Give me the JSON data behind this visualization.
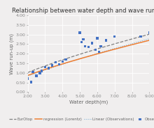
{
  "title": "Relationship between water depth and wave run-up",
  "xlabel": "Water depth(m)",
  "ylabel": "Wave run-up (m)",
  "xlim": [
    2.0,
    9.0
  ],
  "ylim": [
    0.0,
    4.0
  ],
  "xticks": [
    2.0,
    3.0,
    4.0,
    5.0,
    6.0,
    7.0,
    8.0,
    9.0
  ],
  "yticks": [
    0.0,
    0.5,
    1.0,
    1.5,
    2.0,
    2.5,
    3.0,
    3.5,
    4.0
  ],
  "observations": [
    [
      2.0,
      0.7
    ],
    [
      2.2,
      0.52
    ],
    [
      2.3,
      1.05
    ],
    [
      2.5,
      0.85
    ],
    [
      2.7,
      1.0
    ],
    [
      2.8,
      1.1
    ],
    [
      3.0,
      1.3
    ],
    [
      3.2,
      1.25
    ],
    [
      3.4,
      1.4
    ],
    [
      3.6,
      1.55
    ],
    [
      3.8,
      1.45
    ],
    [
      4.0,
      1.6
    ],
    [
      4.2,
      1.7
    ],
    [
      5.0,
      3.1
    ],
    [
      5.1,
      2.6
    ],
    [
      5.2,
      2.75
    ],
    [
      5.3,
      2.4
    ],
    [
      5.5,
      2.35
    ],
    [
      5.7,
      2.55
    ],
    [
      5.9,
      2.2
    ],
    [
      6.0,
      2.8
    ],
    [
      6.1,
      2.1
    ],
    [
      6.2,
      2.4
    ],
    [
      6.5,
      2.7
    ],
    [
      7.0,
      2.9
    ],
    [
      8.5,
      2.9
    ],
    [
      9.0,
      3.1
    ]
  ],
  "eurotop_coeff": 0.62,
  "eurotop_power": 0.72,
  "regression_coeff": 0.52,
  "regression_power": 0.75,
  "linear_obs_coeff": 0.48,
  "linear_obs_power": 0.8,
  "bg_color": "#f0eeee",
  "obs_color": "#4472c4",
  "eurotop_color": "#808080",
  "regression_color": "#ed7d31",
  "linear_color": "#7bafd4",
  "obs_marker": "s",
  "obs_markersize": 2.5,
  "legend_labels": [
    "Observation",
    "EurOtop",
    "regression (Lorentz)",
    "Linear (Observations)"
  ],
  "title_fontsize": 6.0,
  "axis_fontsize": 5.0,
  "tick_fontsize": 4.5,
  "legend_fontsize": 4.0
}
